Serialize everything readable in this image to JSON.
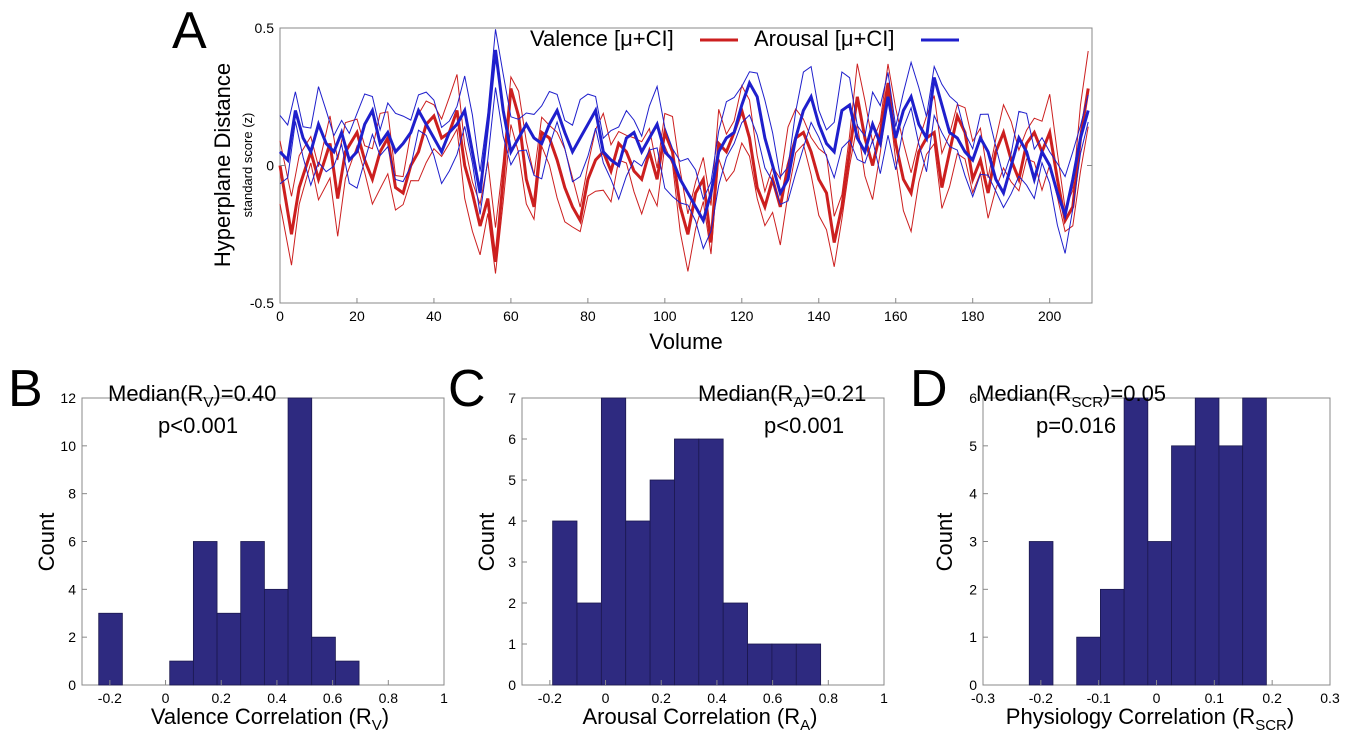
{
  "panels": {
    "A": "A",
    "B": "B",
    "C": "C",
    "D": "D"
  },
  "chart_data": [
    {
      "id": "A",
      "type": "line",
      "xlabel": "Volume",
      "ylabel": "Hyperplane Distance",
      "ysublabel": "standard score (z)",
      "xlim": [
        0,
        211
      ],
      "ylim": [
        -0.5,
        0.5
      ],
      "xticks": [
        0,
        20,
        40,
        60,
        80,
        100,
        120,
        140,
        160,
        180,
        200
      ],
      "yticks": [
        -0.5,
        0,
        0.5
      ],
      "ytick_labels": [
        "-0.5",
        "0",
        "0.5"
      ],
      "grid": false,
      "legend_position": "top",
      "series": [
        {
          "name": "Valence [μ+CI]",
          "color": "#cc1f1f",
          "x": [
            0,
            3,
            5,
            8,
            10,
            13,
            15,
            17,
            20,
            22,
            24,
            26,
            28,
            30,
            32,
            34,
            36,
            38,
            40,
            42,
            44,
            46,
            48,
            50,
            52,
            54,
            56,
            58,
            60,
            62,
            64,
            66,
            68,
            70,
            72,
            74,
            76,
            78,
            80,
            82,
            84,
            86,
            88,
            90,
            92,
            94,
            96,
            98,
            100,
            102,
            104,
            106,
            108,
            110,
            112,
            114,
            116,
            118,
            120,
            122,
            124,
            126,
            128,
            130,
            132,
            134,
            136,
            138,
            140,
            142,
            144,
            146,
            148,
            150,
            152,
            154,
            156,
            158,
            160,
            162,
            164,
            166,
            168,
            170,
            172,
            174,
            176,
            178,
            180,
            182,
            184,
            186,
            188,
            190,
            192,
            194,
            196,
            198,
            200,
            202,
            204,
            206,
            208,
            210
          ],
          "values": [
            0.0,
            -0.25,
            -0.08,
            0.05,
            -0.05,
            0.08,
            -0.12,
            0.05,
            0.12,
            0.02,
            -0.05,
            0.05,
            0.1,
            -0.08,
            -0.1,
            0.0,
            0.05,
            0.15,
            0.18,
            0.1,
            0.12,
            0.2,
            0.0,
            -0.1,
            -0.22,
            -0.12,
            -0.35,
            -0.05,
            0.28,
            0.18,
            -0.05,
            -0.15,
            0.12,
            0.1,
            0.02,
            -0.08,
            -0.15,
            -0.2,
            -0.05,
            0.02,
            0.05,
            -0.02,
            0.08,
            0.05,
            -0.02,
            -0.05,
            0.05,
            -0.05,
            0.12,
            0.05,
            -0.15,
            -0.25,
            -0.1,
            -0.05,
            -0.28,
            0.08,
            0.05,
            0.12,
            0.2,
            0.1,
            -0.08,
            -0.15,
            -0.05,
            -0.15,
            0.0,
            0.1,
            0.12,
            0.05,
            -0.05,
            -0.1,
            -0.28,
            -0.15,
            0.05,
            0.25,
            0.1,
            0.0,
            0.12,
            0.3,
            0.08,
            -0.05,
            -0.1,
            0.05,
            0.1,
            0.12,
            -0.08,
            0.05,
            0.18,
            0.12,
            -0.05,
            0.02,
            -0.1,
            0.05,
            0.12,
            0.02,
            -0.05,
            0.08,
            0.12,
            0.05,
            0.12,
            -0.05,
            -0.2,
            -0.15,
            0.1,
            0.28
          ]
        },
        {
          "name": "Arousal [μ+CI]",
          "color": "#1f1fcc",
          "x": [
            0,
            2,
            4,
            6,
            8,
            10,
            12,
            14,
            16,
            18,
            20,
            22,
            24,
            26,
            28,
            30,
            32,
            34,
            36,
            38,
            40,
            42,
            44,
            46,
            48,
            50,
            52,
            54,
            56,
            58,
            60,
            62,
            64,
            66,
            68,
            70,
            72,
            74,
            76,
            78,
            80,
            82,
            84,
            86,
            88,
            90,
            92,
            94,
            96,
            98,
            100,
            102,
            104,
            106,
            108,
            110,
            112,
            114,
            116,
            118,
            120,
            122,
            124,
            126,
            128,
            130,
            132,
            134,
            136,
            138,
            140,
            142,
            144,
            146,
            148,
            150,
            152,
            154,
            156,
            158,
            160,
            162,
            164,
            166,
            168,
            170,
            172,
            174,
            176,
            178,
            180,
            182,
            184,
            186,
            188,
            190,
            192,
            194,
            196,
            198,
            200,
            202,
            204,
            206,
            208,
            210
          ],
          "values": [
            0.05,
            0.02,
            0.2,
            0.1,
            0.05,
            0.15,
            0.08,
            0.05,
            0.12,
            0.02,
            0.05,
            0.15,
            0.2,
            0.08,
            0.12,
            0.05,
            0.08,
            0.12,
            0.2,
            0.15,
            0.1,
            0.05,
            0.12,
            0.15,
            0.2,
            0.05,
            -0.1,
            0.15,
            0.42,
            0.2,
            0.05,
            0.1,
            0.15,
            0.1,
            0.08,
            0.15,
            0.2,
            0.12,
            0.05,
            0.1,
            0.15,
            0.2,
            0.05,
            0.02,
            0.0,
            0.1,
            0.12,
            0.05,
            0.1,
            0.15,
            0.05,
            0.02,
            -0.05,
            -0.1,
            -0.15,
            -0.2,
            -0.1,
            0.05,
            0.1,
            0.12,
            0.22,
            0.3,
            0.25,
            0.1,
            0.0,
            -0.1,
            -0.05,
            0.1,
            0.2,
            0.25,
            0.15,
            0.08,
            0.05,
            0.2,
            0.22,
            0.1,
            0.05,
            0.15,
            0.08,
            0.25,
            0.1,
            0.2,
            0.25,
            0.15,
            0.1,
            0.32,
            0.22,
            0.12,
            0.1,
            0.05,
            0.02,
            0.1,
            0.05,
            -0.05,
            -0.1,
            0.0,
            0.1,
            0.05,
            -0.05,
            0.05,
            0.0,
            -0.1,
            -0.18,
            -0.05,
            0.1,
            0.2
          ]
        }
      ]
    },
    {
      "id": "B",
      "type": "bar",
      "xlabel": "Valence Correlation (R",
      "xlabel_sub": "V",
      "xlabel_end": ")",
      "ylabel": "Count",
      "xlim": [
        -0.3,
        1.0
      ],
      "ylim": [
        0,
        12
      ],
      "xticks": [
        -0.2,
        0,
        0.2,
        0.4,
        0.6,
        0.8,
        1
      ],
      "xtick_labels": [
        "-0.2",
        "0",
        "0.2",
        "0.4",
        "0.6",
        "0.8",
        "1"
      ],
      "yticks": [
        0,
        2,
        4,
        6,
        8,
        10,
        12
      ],
      "bin_width": 0.085,
      "bins": [
        -0.24,
        -0.155,
        -0.07,
        0.015,
        0.1,
        0.185,
        0.27,
        0.355,
        0.44,
        0.525,
        0.61,
        0.695
      ],
      "values": [
        3,
        0,
        0,
        1,
        6,
        3,
        6,
        4,
        12,
        2,
        1,
        0
      ],
      "color": "#2e2a80",
      "annotation": {
        "line1_prefix": "Median(R",
        "line1_sub": "V",
        "line1_suffix": ")=0.40",
        "line2": "p<0.001"
      }
    },
    {
      "id": "C",
      "type": "bar",
      "xlabel": "Arousal Correlation (R",
      "xlabel_sub": "A",
      "xlabel_end": ")",
      "ylabel": "Count",
      "xlim": [
        -0.3,
        1.0
      ],
      "ylim": [
        0,
        7
      ],
      "xticks": [
        -0.2,
        0,
        0.2,
        0.4,
        0.6,
        0.8,
        1
      ],
      "xtick_labels": [
        "-0.2",
        "0",
        "0.2",
        "0.4",
        "0.6",
        "0.8",
        "1"
      ],
      "yticks": [
        0,
        1,
        2,
        3,
        4,
        5,
        6,
        7
      ],
      "bin_width": 0.0875,
      "bins": [
        -0.19,
        -0.1025,
        -0.015,
        0.0725,
        0.16,
        0.2475,
        0.335,
        0.4225,
        0.51,
        0.5975,
        0.685
      ],
      "values": [
        4,
        2,
        7,
        4,
        5,
        6,
        6,
        2,
        1,
        1,
        1
      ],
      "color": "#2e2a80",
      "annotation": {
        "line1_prefix": "Median(R",
        "line1_sub": "A",
        "line1_suffix": ")=0.21",
        "line2": "p<0.001"
      }
    },
    {
      "id": "D",
      "type": "bar",
      "xlabel": "Physiology Correlation (R",
      "xlabel_sub": "SCR",
      "xlabel_end": ")",
      "ylabel": "Count",
      "xlim": [
        -0.3,
        0.3
      ],
      "ylim": [
        0,
        6
      ],
      "xticks": [
        -0.3,
        -0.2,
        -0.1,
        0,
        0.1,
        0.2,
        0.3
      ],
      "xtick_labels": [
        "-0.3",
        "-0.2",
        "-0.1",
        "0",
        "0.1",
        "0.2",
        "0.3"
      ],
      "yticks": [
        0,
        1,
        2,
        3,
        4,
        5,
        6
      ],
      "bin_width": 0.041,
      "bins": [
        -0.22,
        -0.179,
        -0.138,
        -0.097,
        -0.056,
        -0.015,
        0.026,
        0.067,
        0.108,
        0.149,
        0.19
      ],
      "values": [
        3,
        0,
        1,
        2,
        6,
        3,
        5,
        6,
        5,
        6,
        0
      ],
      "color": "#2e2a80",
      "annotation": {
        "line1_prefix": "Median(R",
        "line1_sub": "SCR",
        "line1_suffix": ")=0.05",
        "line2": "p=0.016"
      }
    }
  ]
}
